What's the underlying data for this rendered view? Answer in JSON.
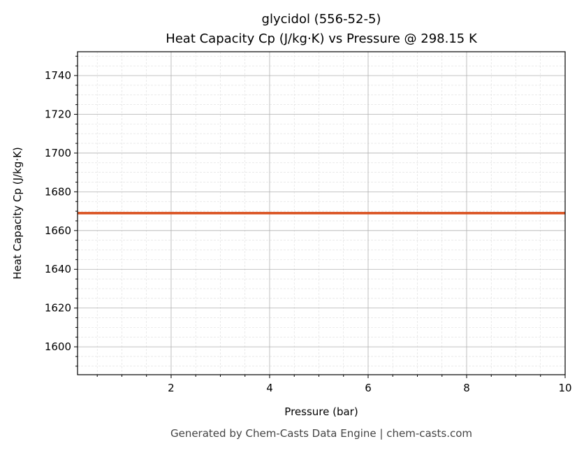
{
  "chart_data": {
    "type": "line",
    "title": "glycidol (556-52-5)",
    "subtitle": "Heat Capacity Cp (J/kg·K) vs Pressure @ 298.15 K",
    "xlabel": "Pressure (bar)",
    "ylabel": "Heat Capacity Cp (J/kg·K)",
    "xlim": [
      0.1,
      10
    ],
    "ylim": [
      1585.6,
      1752.3
    ],
    "xticks": [
      2,
      4,
      6,
      8,
      10
    ],
    "yticks": [
      1600,
      1620,
      1640,
      1660,
      1680,
      1700,
      1720,
      1740
    ],
    "grid": true,
    "series": [
      {
        "x": [
          0.1,
          10
        ],
        "y": [
          1669,
          1669
        ],
        "color": "#d9501e"
      }
    ]
  },
  "footer": "Generated by Chem-Casts Data Engine | chem-casts.com"
}
